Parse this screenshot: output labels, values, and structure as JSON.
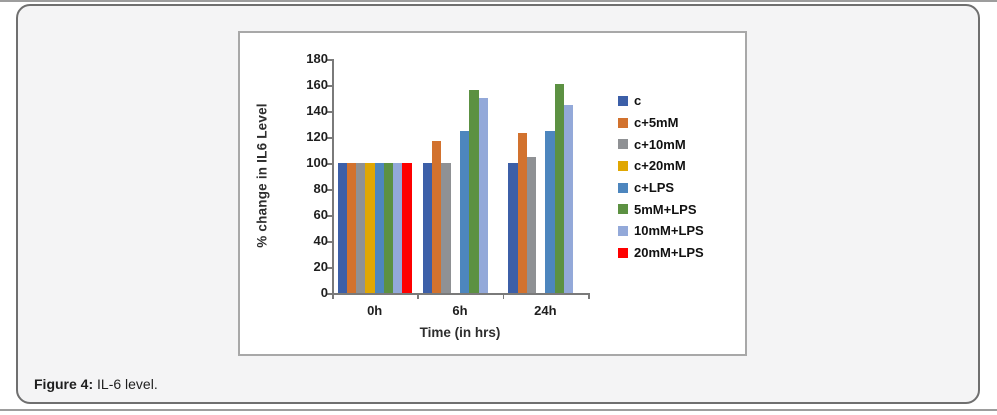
{
  "caption": {
    "prefix": "Figure 4:",
    "text": " IL-6 level."
  },
  "chart_data": {
    "type": "bar",
    "title": "",
    "categories": [
      "0h",
      "6h",
      "24h"
    ],
    "series": [
      {
        "name": "c",
        "color": "#3C5FA8",
        "values": [
          100,
          100,
          100
        ]
      },
      {
        "name": "c+5mM",
        "color": "#D2722E",
        "values": [
          100,
          117,
          123
        ]
      },
      {
        "name": "c+10mM",
        "color": "#8F9194",
        "values": [
          100,
          100,
          105
        ]
      },
      {
        "name": "c+20mM",
        "color": "#E0A702",
        "values": [
          100,
          0,
          0
        ]
      },
      {
        "name": "c+LPS",
        "color": "#4D86BE",
        "values": [
          100,
          125,
          125
        ]
      },
      {
        "name": "5mM+LPS",
        "color": "#5C9142",
        "values": [
          100,
          156,
          161
        ]
      },
      {
        "name": "10mM+LPS",
        "color": "#93A9D9",
        "values": [
          100,
          150,
          145
        ]
      },
      {
        "name": "20mM+LPS",
        "color": "#FE0000",
        "values": [
          100,
          0,
          0
        ]
      }
    ],
    "xlabel": "Time (in hrs)",
    "ylabel": "% change in IL6 Level",
    "ylim": [
      0,
      180
    ],
    "ytick_step": 20,
    "grid": false,
    "legend_position": "right"
  }
}
